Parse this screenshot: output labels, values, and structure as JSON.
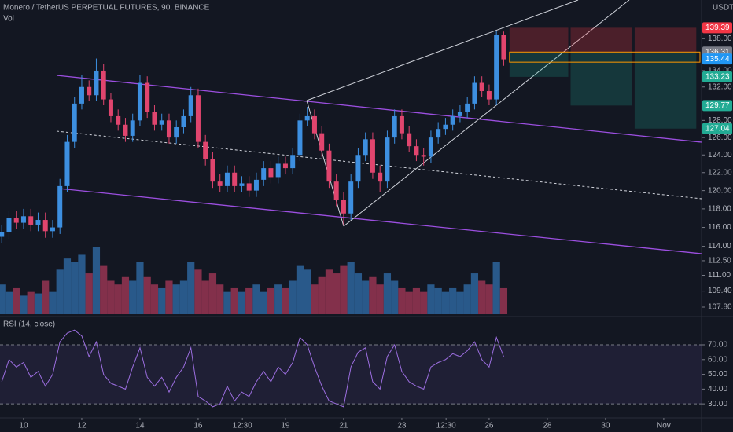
{
  "chart_data": {
    "type": "candlestick",
    "title": "Monero / TetherUS PERPETUAL FUTURES, 90, BINANCE",
    "volume_label": "Vol",
    "rsi_label": "RSI (14, close)",
    "currency": "USDT",
    "log_scale": true,
    "up_color": "#3d8fe0",
    "down_color": "#e0456e",
    "x": [
      9.25,
      9.5,
      9.75,
      10,
      10.25,
      10.5,
      10.75,
      11,
      11.25,
      11.5,
      11.75,
      12,
      12.25,
      12.5,
      12.75,
      13,
      13.25,
      13.5,
      13.75,
      14,
      14.25,
      14.5,
      14.75,
      15,
      15.25,
      15.5,
      15.75,
      16,
      16.25,
      16.5,
      16.75,
      17,
      17.25,
      17.5,
      17.75,
      18,
      18.25,
      18.5,
      18.75,
      19,
      19.25,
      19.5,
      19.75,
      20,
      20.25,
      20.5,
      20.75,
      21,
      21.25,
      21.5,
      21.75,
      22,
      22.25,
      22.5,
      22.75,
      23,
      23.25,
      23.5,
      23.75,
      24,
      24.25,
      24.5,
      24.75,
      25,
      25.25,
      25.5,
      25.75,
      26,
      26.25,
      26.5
    ],
    "ohlc": [
      [
        115.0,
        116.3,
        114.3,
        115.5
      ],
      [
        115.5,
        117.8,
        114.8,
        117.0
      ],
      [
        117.0,
        117.8,
        115.8,
        116.5
      ],
      [
        116.5,
        118.0,
        115.8,
        117.2
      ],
      [
        117.2,
        118.0,
        115.6,
        116.3
      ],
      [
        116.3,
        117.6,
        115.6,
        116.8
      ],
      [
        116.8,
        117.6,
        114.9,
        115.6
      ],
      [
        115.6,
        116.8,
        114.9,
        116.0
      ],
      [
        116.0,
        121.3,
        115.3,
        120.5
      ],
      [
        120.5,
        126.3,
        119.8,
        125.5
      ],
      [
        125.5,
        130.8,
        124.8,
        130.0
      ],
      [
        130.0,
        133.5,
        129.3,
        132.0
      ],
      [
        132.0,
        132.8,
        130.3,
        131.0
      ],
      [
        131.0,
        135.5,
        130.3,
        134.0
      ],
      [
        134.0,
        134.8,
        129.8,
        130.5
      ],
      [
        130.5,
        131.3,
        127.8,
        128.5
      ],
      [
        128.5,
        129.3,
        126.8,
        127.5
      ],
      [
        127.5,
        128.3,
        125.5,
        126.2
      ],
      [
        126.2,
        128.8,
        125.5,
        128.0
      ],
      [
        128.0,
        133.5,
        127.3,
        132.5
      ],
      [
        132.5,
        133.3,
        128.3,
        129.0
      ],
      [
        129.0,
        129.8,
        126.8,
        127.5
      ],
      [
        127.5,
        128.8,
        126.8,
        128.0
      ],
      [
        128.0,
        128.8,
        125.3,
        126.0
      ],
      [
        126.0,
        128.0,
        125.3,
        127.2
      ],
      [
        127.2,
        129.3,
        126.5,
        128.5
      ],
      [
        128.5,
        132.0,
        127.8,
        131.0
      ],
      [
        131.0,
        131.8,
        124.8,
        125.5
      ],
      [
        125.5,
        126.3,
        122.8,
        123.5
      ],
      [
        123.5,
        124.3,
        120.3,
        121.0
      ],
      [
        121.0,
        121.8,
        119.8,
        120.5
      ],
      [
        120.5,
        122.8,
        119.8,
        122.0
      ],
      [
        122.0,
        122.8,
        119.8,
        120.5
      ],
      [
        120.5,
        121.6,
        119.8,
        120.8
      ],
      [
        120.8,
        121.6,
        119.3,
        120.0
      ],
      [
        120.0,
        122.0,
        119.3,
        121.2
      ],
      [
        121.2,
        123.3,
        120.5,
        122.5
      ],
      [
        122.5,
        123.3,
        120.8,
        121.5
      ],
      [
        121.5,
        123.8,
        120.8,
        123.0
      ],
      [
        123.0,
        123.8,
        121.8,
        122.5
      ],
      [
        122.5,
        124.8,
        121.8,
        124.0
      ],
      [
        124.0,
        128.8,
        123.3,
        128.0
      ],
      [
        128.0,
        129.6,
        127.3,
        128.5
      ],
      [
        128.5,
        129.3,
        125.8,
        126.5
      ],
      [
        126.5,
        127.3,
        123.8,
        124.5
      ],
      [
        124.5,
        125.3,
        120.3,
        121.0
      ],
      [
        121.0,
        121.8,
        118.3,
        119.0
      ],
      [
        119.0,
        119.8,
        116.2,
        117.5
      ],
      [
        117.5,
        121.8,
        116.8,
        121.0
      ],
      [
        121.0,
        124.8,
        120.3,
        124.0
      ],
      [
        124.0,
        126.6,
        123.3,
        125.8
      ],
      [
        125.8,
        126.6,
        121.3,
        122.0
      ],
      [
        122.0,
        122.8,
        119.8,
        121.0
      ],
      [
        121.0,
        126.8,
        120.3,
        126.0
      ],
      [
        126.0,
        129.3,
        125.3,
        128.5
      ],
      [
        128.5,
        129.3,
        125.8,
        126.5
      ],
      [
        126.5,
        127.3,
        124.3,
        125.0
      ],
      [
        125.0,
        125.8,
        123.3,
        124.0
      ],
      [
        124.0,
        124.8,
        122.8,
        123.8
      ],
      [
        123.8,
        126.8,
        123.1,
        126.0
      ],
      [
        126.0,
        127.8,
        125.3,
        127.0
      ],
      [
        127.0,
        128.3,
        126.3,
        127.5
      ],
      [
        127.5,
        129.3,
        126.8,
        128.5
      ],
      [
        128.5,
        129.8,
        127.8,
        129.0
      ],
      [
        129.0,
        130.8,
        128.3,
        130.0
      ],
      [
        130.0,
        133.3,
        129.3,
        132.5
      ],
      [
        132.5,
        133.3,
        130.8,
        131.5
      ],
      [
        131.5,
        132.3,
        129.8,
        130.5
      ],
      [
        130.5,
        139.0,
        129.8,
        138.5
      ],
      [
        138.5,
        138.9,
        134.6,
        135.4
      ]
    ],
    "volume": [
      40,
      30,
      35,
      25,
      30,
      28,
      45,
      30,
      60,
      75,
      70,
      80,
      55,
      90,
      65,
      45,
      40,
      50,
      45,
      70,
      50,
      40,
      35,
      45,
      40,
      45,
      70,
      60,
      45,
      55,
      40,
      30,
      35,
      30,
      35,
      40,
      30,
      35,
      40,
      35,
      45,
      65,
      60,
      40,
      50,
      60,
      55,
      65,
      70,
      55,
      45,
      50,
      40,
      55,
      45,
      35,
      30,
      35,
      30,
      40,
      35,
      30,
      35,
      30,
      40,
      55,
      45,
      40,
      70,
      35
    ],
    "rsi": [
      45,
      60,
      55,
      58,
      48,
      52,
      42,
      50,
      72,
      78,
      80,
      76,
      62,
      72,
      50,
      44,
      42,
      40,
      55,
      68,
      48,
      42,
      48,
      38,
      48,
      55,
      68,
      35,
      32,
      28,
      30,
      42,
      32,
      38,
      35,
      45,
      52,
      45,
      55,
      50,
      58,
      75,
      70,
      55,
      42,
      32,
      30,
      28,
      55,
      65,
      68,
      45,
      40,
      62,
      70,
      52,
      45,
      42,
      40,
      55,
      58,
      60,
      64,
      62,
      66,
      72,
      60,
      55,
      75,
      62
    ],
    "rsi_color": "#9c6ee0",
    "xlim": [
      9.19,
      33.3
    ],
    "xticks": [
      10,
      12,
      14,
      16,
      {
        "value": 17.52,
        "label": "12:30"
      },
      19,
      21,
      23,
      {
        "value": 24.52,
        "label": "12:30"
      },
      26,
      28,
      30,
      {
        "value": 32,
        "label": "Nov"
      }
    ],
    "ylim": [
      107.1,
      143.0
    ],
    "yticks": [
      {
        "value": 138,
        "label": "138.00"
      },
      {
        "value": 134,
        "label": "134.00"
      },
      {
        "value": 132,
        "label": "132.00"
      },
      {
        "value": 128,
        "label": "128.00"
      },
      {
        "value": 126,
        "label": "126.00"
      },
      {
        "value": 124,
        "label": "124.00"
      },
      {
        "value": 122,
        "label": "122.00"
      },
      {
        "value": 120,
        "label": "120.00"
      },
      {
        "value": 118,
        "label": "118.00"
      },
      {
        "value": 116,
        "label": "116.00"
      },
      {
        "value": 114,
        "label": "114.00"
      },
      {
        "value": 112.5,
        "label": "112.50"
      },
      {
        "value": 111,
        "label": "111.00"
      },
      {
        "value": 109.4,
        "label": "109.40"
      },
      {
        "value": 107.8,
        "label": "107.80"
      }
    ],
    "rsi_ylim": [
      20.5,
      88.1
    ],
    "rsi_yticks": [
      {
        "value": 70,
        "label": "70.00"
      },
      {
        "value": 60,
        "label": "60.00"
      },
      {
        "value": 50,
        "label": "50.00"
      },
      {
        "value": 40,
        "label": "40.00"
      },
      {
        "value": 30,
        "label": "30.00"
      }
    ],
    "position": {
      "start": 26.7,
      "ends": [
        28.8,
        31.0,
        33.2
      ],
      "stop": 139.39,
      "entry_high": 136.31,
      "entry": 135.44,
      "targets": [
        133.23,
        129.77,
        127.04
      ]
    },
    "price_tags": [
      {
        "value": 139.39,
        "color": "#f23645"
      },
      {
        "value": 136.31,
        "color": "#787b86"
      },
      {
        "value": 135.44,
        "color": "#2196f3"
      },
      {
        "value": 133.23,
        "color": "#22ab94"
      },
      {
        "value": 129.77,
        "color": "#22ab94"
      },
      {
        "value": 127.04,
        "color": "#22ab94"
      }
    ],
    "grid": false
  }
}
